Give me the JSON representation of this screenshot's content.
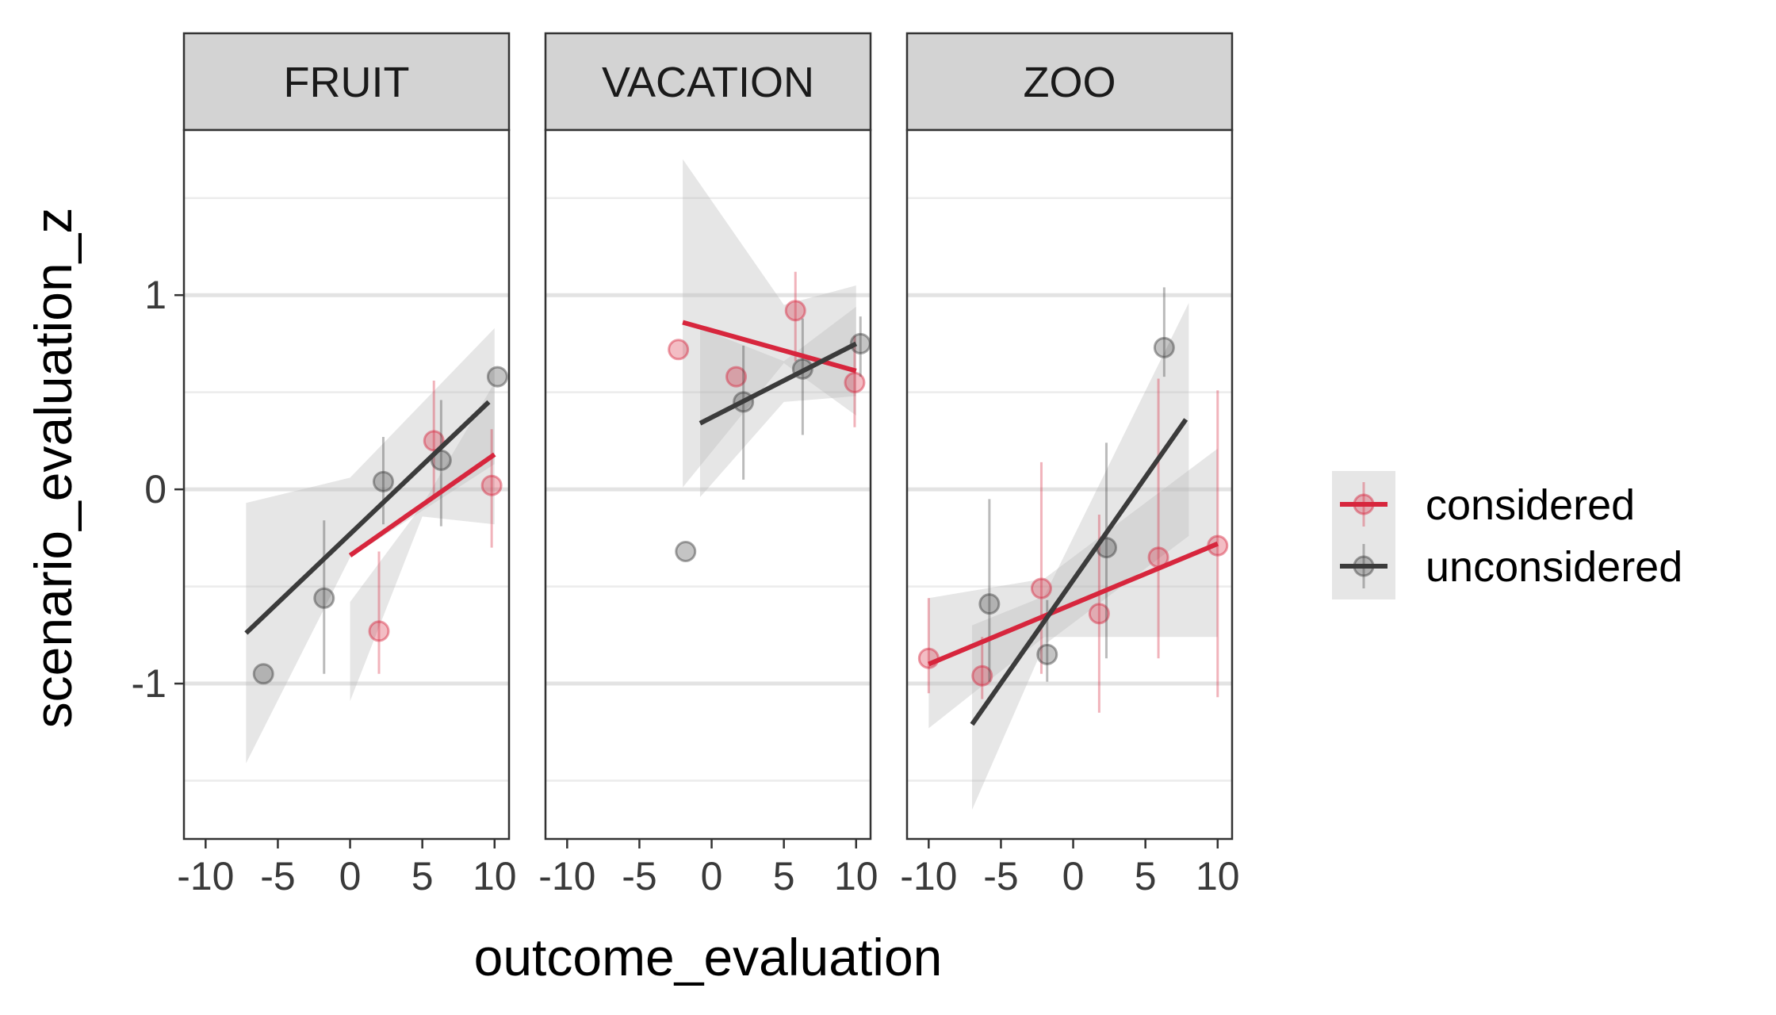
{
  "chart_data": {
    "type": "scatter",
    "xlabel": "outcome_evaluation",
    "ylabel": "scenario_evaluation_z",
    "xlim": [
      -11.5,
      11
    ],
    "ylim": [
      -1.8,
      1.85
    ],
    "xticks": [
      -10,
      -5,
      0,
      5,
      10
    ],
    "x_tick_labels": [
      "-10",
      "-5",
      "0",
      "5",
      "10"
    ],
    "yticks": [
      -1,
      0,
      1
    ],
    "y_tick_labels": [
      "-1",
      "0",
      "1"
    ],
    "grid": true,
    "legend_position": "right",
    "legend": [
      {
        "name": "considered",
        "color": "#d7263d"
      },
      {
        "name": "unconsidered",
        "color": "#3b3b3b"
      }
    ],
    "panels": [
      {
        "strip": "FRUIT",
        "series": [
          {
            "name": "considered",
            "points": [
              {
                "x": 2,
                "y": -0.73,
                "lo": -0.95,
                "hi": -0.32
              },
              {
                "x": 5.8,
                "y": 0.25,
                "lo": -0.05,
                "hi": 0.56
              },
              {
                "x": 9.8,
                "y": 0.02,
                "lo": -0.3,
                "hi": 0.31
              }
            ],
            "fit": {
              "x1": 0,
              "y1": -0.34,
              "x2": 10,
              "y2": 0.18
            },
            "band": [
              [
                0,
                -0.58,
                -1.09
              ],
              [
                5,
                -0.08,
                -0.14
              ],
              [
                10,
                0.55,
                -0.18
              ]
            ]
          },
          {
            "name": "unconsidered",
            "points": [
              {
                "x": -6,
                "y": -0.95
              },
              {
                "x": -1.8,
                "y": -0.56,
                "lo": -0.95,
                "hi": -0.16
              },
              {
                "x": 2.3,
                "y": 0.04,
                "lo": -0.18,
                "hi": 0.27
              },
              {
                "x": 6.3,
                "y": 0.15,
                "lo": -0.19,
                "hi": 0.46
              },
              {
                "x": 10.2,
                "y": 0.58
              }
            ],
            "fit": {
              "x1": -7.2,
              "y1": -0.74,
              "x2": 9.6,
              "y2": 0.45
            },
            "band": [
              [
                -7.2,
                -0.07,
                -1.41
              ],
              [
                0,
                0.06,
                -0.35
              ],
              [
                10,
                0.83,
                0.13
              ]
            ]
          }
        ]
      },
      {
        "strip": "VACATION",
        "series": [
          {
            "name": "considered",
            "points": [
              {
                "x": -2.3,
                "y": 0.72
              },
              {
                "x": 1.7,
                "y": 0.58
              },
              {
                "x": 5.8,
                "y": 0.92,
                "lo": 0.66,
                "hi": 1.12
              },
              {
                "x": 9.9,
                "y": 0.55,
                "lo": 0.32,
                "hi": 0.79
              }
            ],
            "fit": {
              "x1": -2,
              "y1": 0.86,
              "x2": 10,
              "y2": 0.61
            },
            "band": [
              [
                -2,
                1.7,
                0.01
              ],
              [
                5,
                0.95,
                0.65
              ],
              [
                10,
                1.05,
                0.38
              ]
            ]
          },
          {
            "name": "unconsidered",
            "points": [
              {
                "x": -1.8,
                "y": -0.32
              },
              {
                "x": 2.2,
                "y": 0.45,
                "lo": 0.05,
                "hi": 0.74
              },
              {
                "x": 6.3,
                "y": 0.62,
                "lo": 0.28,
                "hi": 0.88
              },
              {
                "x": 10.3,
                "y": 0.75,
                "lo": 0.58,
                "hi": 0.89
              }
            ],
            "fit": {
              "x1": -0.8,
              "y1": 0.34,
              "x2": 10,
              "y2": 0.75
            },
            "band": [
              [
                -0.8,
                0.83,
                -0.04
              ],
              [
                5,
                0.66,
                0.45
              ],
              [
                10,
                0.94,
                0.48
              ]
            ]
          }
        ]
      },
      {
        "strip": "ZOO",
        "series": [
          {
            "name": "considered",
            "points": [
              {
                "x": -10,
                "y": -0.87,
                "lo": -1.05,
                "hi": -0.56
              },
              {
                "x": -6.3,
                "y": -0.96,
                "lo": -1.08,
                "hi": -0.76
              },
              {
                "x": -2.2,
                "y": -0.51,
                "lo": -0.95,
                "hi": 0.14
              },
              {
                "x": 1.8,
                "y": -0.64,
                "lo": -1.15,
                "hi": -0.13
              },
              {
                "x": 5.9,
                "y": -0.35,
                "lo": -0.87,
                "hi": 0.57
              },
              {
                "x": 10,
                "y": -0.29,
                "lo": -1.07,
                "hi": 0.51
              }
            ],
            "fit": {
              "x1": -10,
              "y1": -0.9,
              "x2": 10,
              "y2": -0.28
            },
            "band": [
              [
                -10,
                -0.56,
                -1.23
              ],
              [
                -2,
                -0.46,
                -0.76
              ],
              [
                10,
                0.21,
                -0.76
              ]
            ]
          },
          {
            "name": "unconsidered",
            "points": [
              {
                "x": -5.8,
                "y": -0.59,
                "lo": -0.99,
                "hi": -0.05
              },
              {
                "x": -1.8,
                "y": -0.85,
                "lo": -0.99,
                "hi": -0.57
              },
              {
                "x": 2.3,
                "y": -0.3,
                "lo": -0.87,
                "hi": 0.24
              },
              {
                "x": 6.3,
                "y": 0.73,
                "lo": 0.58,
                "hi": 1.04
              }
            ],
            "fit": {
              "x1": -7,
              "y1": -1.21,
              "x2": 7.8,
              "y2": 0.36
            },
            "band": [
              [
                -7,
                -0.7,
                -1.65
              ],
              [
                -2,
                -0.55,
                -0.8
              ],
              [
                8,
                0.96,
                -0.24
              ]
            ]
          }
        ]
      }
    ]
  }
}
